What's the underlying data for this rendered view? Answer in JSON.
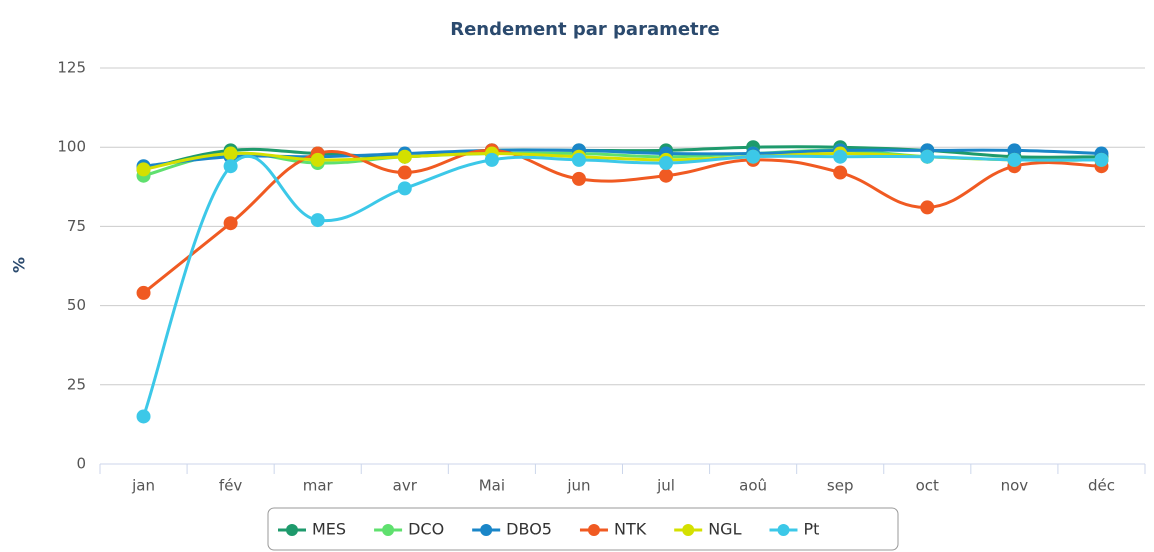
{
  "chart_data": {
    "type": "line",
    "title": "Rendement par parametre",
    "y_label": "%",
    "categories": [
      "jan",
      "fév",
      "mar",
      "avr",
      "Mai",
      "jun",
      "jul",
      "aoû",
      "sep",
      "oct",
      "nov",
      "déc"
    ],
    "series": [
      {
        "name": "MES",
        "color": "#1e9a6c",
        "values": [
          93,
          99,
          98,
          97,
          99,
          99,
          99,
          100,
          100,
          99,
          97,
          97
        ]
      },
      {
        "name": "DCO",
        "color": "#5fe06e",
        "values": [
          91,
          98,
          95,
          97,
          98,
          98,
          97,
          98,
          99,
          97,
          96,
          96
        ]
      },
      {
        "name": "DBO5",
        "color": "#1a86c8",
        "values": [
          94,
          97,
          97,
          98,
          99,
          99,
          98,
          98,
          99,
          99,
          99,
          98
        ]
      },
      {
        "name": "NTK",
        "color": "#f05a22",
        "values": [
          54,
          76,
          98,
          92,
          99,
          90,
          91,
          96,
          92,
          81,
          94,
          94
        ]
      },
      {
        "name": "NGL",
        "color": "#d4e000",
        "values": [
          93,
          98,
          96,
          97,
          98,
          97,
          96,
          97,
          98,
          97,
          96,
          96
        ]
      },
      {
        "name": "Pt",
        "color": "#3cc8e8",
        "values": [
          15,
          94,
          77,
          87,
          96,
          96,
          95,
          97,
          97,
          97,
          96,
          96
        ]
      }
    ],
    "ylim": [
      0,
      125
    ],
    "yticks": [
      0,
      25,
      50,
      75,
      100,
      125
    ],
    "grid": true,
    "legend": "bottom"
  }
}
